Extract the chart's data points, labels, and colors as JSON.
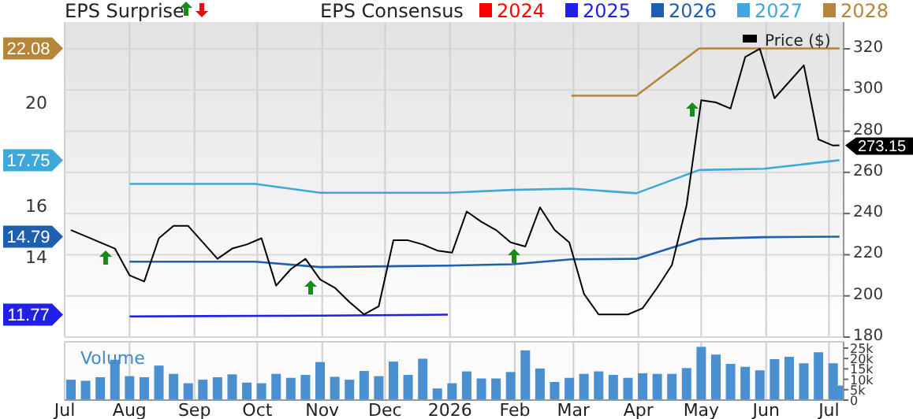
{
  "chart_data": [
    {
      "type": "line",
      "annotations": [
        "EPS Surprise"
      ],
      "legend_title": "EPS Consensus",
      "legend": "top",
      "grid": true,
      "tick_labels": "y",
      "xlim": [
        "2025-07-01",
        "2026-07-08"
      ],
      "xticks": [
        {
          "value": "2025-07-01",
          "label": null
        },
        {
          "value": "2025-08-01",
          "label": null
        },
        {
          "value": "2025-09-01",
          "label": null
        },
        {
          "value": "2025-10-01",
          "label": null
        },
        {
          "value": "2025-11-01",
          "label": null
        },
        {
          "value": "2025-12-01",
          "label": null
        },
        {
          "value": "2026-01-01",
          "label": null
        },
        {
          "value": "2026-02-01",
          "label": null
        },
        {
          "value": "2026-03-01",
          "label": null
        },
        {
          "value": "2026-04-01",
          "label": null
        },
        {
          "value": "2026-05-01",
          "label": null
        },
        {
          "value": "2026-06-01",
          "label": null
        },
        {
          "value": "2026-07-01",
          "label": null
        }
      ],
      "ylim": [
        10.9,
        23.1
      ],
      "yticks": [
        11.77,
        14,
        14.79,
        16,
        17.75,
        20,
        22.08
      ],
      "y2lim": [
        180,
        333
      ],
      "y2ticks": [
        180,
        200,
        220,
        240,
        260,
        280,
        300,
        320
      ],
      "series": [
        {
          "name": "2024",
          "color": "#ff0000"
        },
        {
          "name": "2025",
          "color": "#2020e8",
          "x": [
            "2025-08-01",
            "2025-11-01",
            "2025-12-31"
          ],
          "values": [
            11.7,
            11.73,
            11.77
          ]
        },
        {
          "name": "2026",
          "color": "#1f5fb0",
          "x": [
            "2025-08-01",
            "2025-09-30",
            "2025-10-31",
            "2025-12-31",
            "2026-01-31",
            "2026-02-28",
            "2026-03-31",
            "2026-04-30",
            "2026-05-31",
            "2026-07-06"
          ],
          "values": [
            13.82,
            13.82,
            13.61,
            13.67,
            13.72,
            13.91,
            13.93,
            14.7,
            14.77,
            14.79
          ]
        },
        {
          "name": "2027",
          "color": "#3fa8da",
          "x": [
            "2025-08-01",
            "2025-09-30",
            "2025-10-31",
            "2025-12-31",
            "2026-01-31",
            "2026-02-28",
            "2026-03-31",
            "2026-04-30",
            "2026-05-31",
            "2026-07-06"
          ],
          "values": [
            16.83,
            16.83,
            16.49,
            16.49,
            16.6,
            16.65,
            16.47,
            17.37,
            17.42,
            17.75
          ]
        },
        {
          "name": "2028",
          "color": "#b5853a",
          "x": [
            "2026-02-28",
            "2026-03-31",
            "2026-04-30",
            "2026-07-06"
          ],
          "values": [
            20.25,
            20.25,
            22.08,
            22.08
          ]
        },
        {
          "name": "Price ($)",
          "color": "#000000",
          "axis": "y2",
          "x": [
            "2025-07-04",
            "2025-07-25",
            "2025-08-01",
            "2025-08-08",
            "2025-08-15",
            "2025-08-22",
            "2025-08-29",
            "2025-09-12",
            "2025-09-19",
            "2025-09-26",
            "2025-10-03",
            "2025-10-10",
            "2025-10-17",
            "2025-10-24",
            "2025-10-31",
            "2025-11-07",
            "2025-11-14",
            "2025-11-21",
            "2025-11-28",
            "2025-12-05",
            "2025-12-12",
            "2025-12-19",
            "2025-12-26",
            "2026-01-02",
            "2026-01-09",
            "2026-01-16",
            "2026-01-23",
            "2026-01-30",
            "2026-02-06",
            "2026-02-13",
            "2026-02-20",
            "2026-02-27",
            "2026-03-06",
            "2026-03-13",
            "2026-03-27",
            "2026-04-03",
            "2026-04-10",
            "2026-04-17",
            "2026-04-24",
            "2026-05-01",
            "2026-05-08",
            "2026-05-15",
            "2026-05-22",
            "2026-05-29",
            "2026-06-05",
            "2026-06-19",
            "2026-06-26",
            "2026-07-03",
            "2026-07-06"
          ],
          "values": [
            232,
            223,
            210,
            207,
            228,
            234,
            234,
            218,
            223,
            225,
            228,
            205,
            213,
            218,
            208,
            204,
            197,
            191,
            195,
            227,
            227,
            225,
            222,
            221,
            241,
            236,
            232,
            226,
            224,
            243,
            232,
            226,
            201,
            191,
            191,
            194,
            204,
            215,
            244,
            295,
            294,
            291,
            316,
            320,
            296,
            312,
            276,
            273,
            273.15
          ],
          "value_labels": [
            null,
            null,
            null,
            null,
            null,
            null,
            null,
            null,
            null,
            null,
            null,
            null,
            null,
            null,
            null,
            null,
            null,
            null,
            null,
            null,
            null,
            null,
            null,
            null,
            null,
            null,
            null,
            null,
            null,
            null,
            null,
            null,
            null,
            null,
            null,
            null,
            null,
            null,
            null,
            null,
            null,
            null,
            null,
            null,
            null,
            null,
            null,
            null,
            "273.15"
          ]
        }
      ]
    },
    {
      "type": "bar",
      "title": "Volume",
      "color": "#4a90d0",
      "grid": "x",
      "xlim": [
        "2025-07-01",
        "2026-07-08"
      ],
      "xticks": [
        {
          "value": "2025-07-01",
          "label": "Jul"
        },
        {
          "value": "2025-08-01",
          "label": "Aug"
        },
        {
          "value": "2025-09-01",
          "label": "Sep"
        },
        {
          "value": "2025-10-01",
          "label": "Oct"
        },
        {
          "value": "2025-11-01",
          "label": "Nov"
        },
        {
          "value": "2025-12-01",
          "label": "Dec"
        },
        {
          "value": "2026-01-01",
          "label": "2026"
        },
        {
          "value": "2026-02-01",
          "label": "Feb"
        },
        {
          "value": "2026-03-01",
          "label": "Mar"
        },
        {
          "value": "2026-04-01",
          "label": "Apr"
        },
        {
          "value": "2026-05-01",
          "label": "May"
        },
        {
          "value": "2026-06-01",
          "label": "Jun"
        },
        {
          "value": "2026-07-01",
          "label": "Jul"
        }
      ],
      "ylim": [
        0,
        26500
      ],
      "yticks": [
        {
          "value": 0,
          "label": "0"
        },
        {
          "value": 5000,
          "label": "5k"
        },
        {
          "value": 10000,
          "label": "10k"
        },
        {
          "value": 15000,
          "label": "15k"
        },
        {
          "value": 20000,
          "label": "20k"
        },
        {
          "value": 25000,
          "label": "25k"
        }
      ],
      "x": [
        "2025-07-04",
        "2025-07-11",
        "2025-07-18",
        "2025-07-25",
        "2025-08-01",
        "2025-08-08",
        "2025-08-15",
        "2025-08-22",
        "2025-08-29",
        "2025-09-05",
        "2025-09-12",
        "2025-09-19",
        "2025-09-26",
        "2025-10-03",
        "2025-10-10",
        "2025-10-17",
        "2025-10-24",
        "2025-10-31",
        "2025-11-07",
        "2025-11-14",
        "2025-11-21",
        "2025-11-28",
        "2025-12-05",
        "2025-12-12",
        "2025-12-19",
        "2025-12-26",
        "2026-01-02",
        "2026-01-09",
        "2026-01-16",
        "2026-01-23",
        "2026-01-30",
        "2026-02-06",
        "2026-02-13",
        "2026-02-20",
        "2026-02-27",
        "2026-03-06",
        "2026-03-13",
        "2026-03-20",
        "2026-03-27",
        "2026-04-03",
        "2026-04-10",
        "2026-04-17",
        "2026-04-24",
        "2026-05-01",
        "2026-05-08",
        "2026-05-15",
        "2026-05-22",
        "2026-05-29",
        "2026-06-05",
        "2026-06-12",
        "2026-06-19",
        "2026-06-26",
        "2026-07-03",
        "2026-07-06"
      ],
      "values": [
        9800,
        9300,
        11000,
        19400,
        11500,
        11000,
        16600,
        12600,
        8100,
        9800,
        11000,
        12400,
        8400,
        8100,
        12600,
        10700,
        12100,
        18300,
        11200,
        9800,
        14000,
        11500,
        18500,
        12100,
        19900,
        5600,
        8100,
        13800,
        10400,
        10400,
        13500,
        23900,
        15200,
        8700,
        10700,
        12600,
        13800,
        12100,
        10700,
        12900,
        12600,
        12600,
        15400,
        25600,
        21900,
        17400,
        16000,
        14300,
        19700,
        20800,
        17700,
        23000,
        17700,
        7000
      ]
    }
  ]
}
